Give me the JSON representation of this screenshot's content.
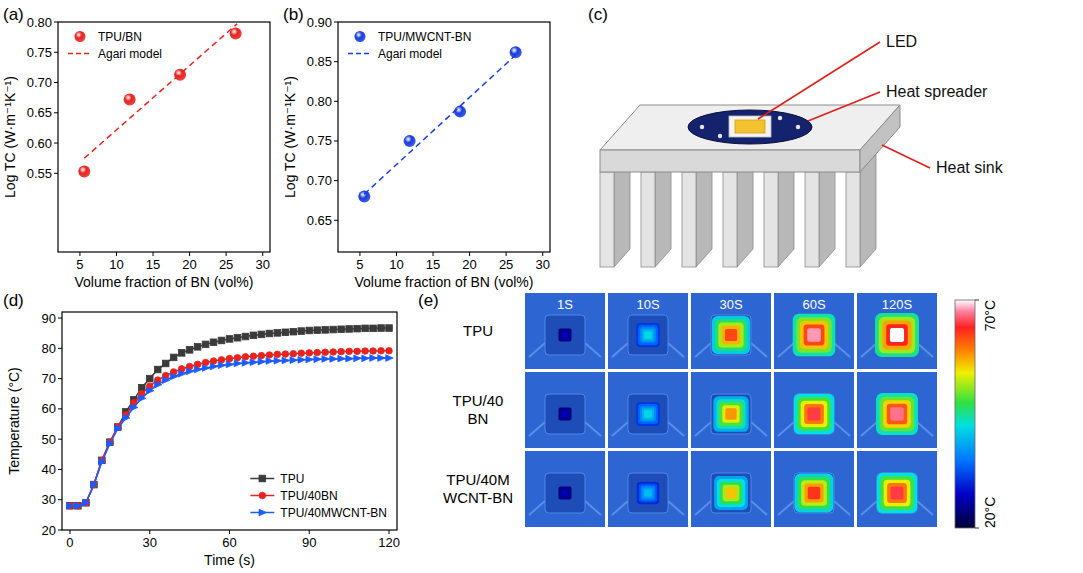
{
  "chart_data": [
    {
      "label": "(a)",
      "type": "scatter",
      "x_label": "Volume fraction of BN (vol%)",
      "y_label": "Log TC (W·m⁻¹K⁻¹)",
      "xlim": [
        2,
        31
      ],
      "xticks": [
        5,
        10,
        15,
        20,
        25,
        30
      ],
      "ylim": [
        0.42,
        0.8
      ],
      "yticks": [
        0.55,
        {
          "value": 0.6,
          "label": "0.60"
        },
        0.65,
        {
          "value": 0.7,
          "label": "0.70"
        },
        0.75,
        {
          "value": 0.8,
          "label": "0.80"
        }
      ],
      "legend": "upper left",
      "series": [
        {
          "name": "TPU/BN",
          "type": "scatter",
          "color": "#e8231f",
          "marker": "circle",
          "x": [
            5.6,
            11.8,
            18.7,
            26.3
          ],
          "values": [
            0.553,
            0.672,
            0.713,
            0.781
          ]
        },
        {
          "name": "Agari model",
          "type": "line",
          "line_style": "dashed",
          "color": "#e8231f",
          "x": [
            5.6,
            26.5
          ],
          "values": [
            0.575,
            0.797
          ]
        }
      ]
    },
    {
      "label": "(b)",
      "type": "scatter",
      "x_label": "Volume fraction of BN (vol%)",
      "y_label": "Log TC (W·m⁻¹K⁻¹)",
      "xlim": [
        2,
        31
      ],
      "xticks": [
        5,
        10,
        15,
        20,
        25,
        30
      ],
      "ylim": [
        0.61,
        0.9
      ],
      "yticks": [
        0.65,
        {
          "value": 0.7,
          "label": "0.70"
        },
        0.75,
        {
          "value": 0.8,
          "label": "0.80"
        },
        0.85,
        {
          "value": 0.9,
          "label": "0.90"
        }
      ],
      "legend": "upper left",
      "series": [
        {
          "name": "TPU/MWCNT-BN",
          "type": "scatter",
          "color": "#1b3de0",
          "marker": "circle",
          "x": [
            5.6,
            11.8,
            18.7,
            26.3
          ],
          "values": [
            0.68,
            0.75,
            0.787,
            0.862
          ]
        },
        {
          "name": "Agari model",
          "type": "line",
          "line_style": "dashed",
          "color": "#1b3de0",
          "x": [
            5.6,
            26.5
          ],
          "values": [
            0.683,
            0.86
          ]
        }
      ]
    },
    {
      "label": "(d)",
      "type": "line",
      "x_label": "Time (s)",
      "y_label": "Temperature (°C)",
      "x": [
        0,
        3,
        6,
        9,
        12,
        15,
        18,
        21,
        24,
        27,
        30,
        33,
        36,
        39,
        42,
        45,
        48,
        51,
        54,
        57,
        60,
        63,
        66,
        69,
        72,
        75,
        78,
        81,
        84,
        87,
        90,
        93,
        96,
        99,
        102,
        105,
        108,
        111,
        114,
        117,
        120
      ],
      "xlim": [
        -3,
        123
      ],
      "xticks": [
        0,
        30,
        60,
        90,
        120
      ],
      "ylim": [
        20,
        92
      ],
      "yticks": [
        20,
        30,
        40,
        50,
        60,
        70,
        80,
        90
      ],
      "legend": "lower right",
      "series": [
        {
          "name": "TPU",
          "color": "#3a3a3a",
          "marker": "square",
          "values": [
            28,
            28,
            29,
            35,
            43,
            49,
            54,
            59,
            63,
            67,
            70,
            73,
            75,
            77,
            78.5,
            79.5,
            80.5,
            81.3,
            82,
            82.6,
            83.1,
            83.5,
            83.9,
            84.3,
            84.6,
            84.9,
            85.1,
            85.3,
            85.5,
            85.7,
            85.9,
            86,
            86.1,
            86.2,
            86.3,
            86.4,
            86.5,
            86.6,
            86.6,
            86.7,
            86.7
          ]
        },
        {
          "name": "TPU/40BN",
          "color": "#e8231f",
          "marker": "circle",
          "values": [
            28,
            28,
            29,
            35,
            43,
            49,
            54,
            58,
            62,
            65,
            67.5,
            69.5,
            71,
            72.2,
            73.2,
            74,
            74.7,
            75.3,
            75.8,
            76.2,
            76.6,
            76.9,
            77.2,
            77.4,
            77.6,
            77.8,
            78,
            78.1,
            78.2,
            78.4,
            78.5,
            78.6,
            78.7,
            78.8,
            78.9,
            79,
            79,
            79.1,
            79.1,
            79.2,
            79.2
          ]
        },
        {
          "name": "TPU/40MWCNT-BN",
          "color": "#1b5cff",
          "marker": "triangle-right",
          "values": [
            28,
            28,
            29,
            35,
            42.5,
            48.5,
            53.5,
            57,
            60.5,
            63.5,
            66,
            68,
            69.5,
            70.7,
            71.6,
            72.4,
            73,
            73.5,
            74,
            74.4,
            74.7,
            75,
            75.2,
            75.4,
            75.6,
            75.8,
            75.9,
            76,
            76.1,
            76.2,
            76.3,
            76.4,
            76.5,
            76.5,
            76.6,
            76.6,
            76.7,
            76.7,
            76.8,
            76.8,
            76.8
          ]
        }
      ]
    }
  ],
  "diagram": {
    "label": "(c)",
    "parts": {
      "led": "LED",
      "spreader": "Heat spreader",
      "sink": "Heat sink"
    }
  },
  "thermal_images": {
    "label": "(e)",
    "rows": [
      [
        "TPU"
      ],
      [
        "TPU/40",
        "BN"
      ],
      [
        "TPU/40M",
        "WCNT-BN"
      ]
    ],
    "times": [
      "1S",
      "10S",
      "30S",
      "60S",
      "120S"
    ],
    "cells": [
      [
        27,
        42,
        62,
        68,
        70
      ],
      [
        27,
        42,
        58,
        65,
        67
      ],
      [
        27,
        40,
        56,
        63,
        65
      ]
    ],
    "color_range": [
      20,
      70
    ],
    "color_ticks": [
      {
        "value": 70,
        "label": "70°C"
      },
      {
        "value": 20,
        "label": "20°C"
      }
    ]
  }
}
